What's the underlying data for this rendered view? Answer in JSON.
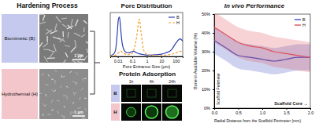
{
  "panels": {
    "hardening": {
      "title": "Hardening Process",
      "labels": [
        "Biomimetic (B)",
        "Hydrothermal (H)"
      ],
      "scale_bars": [
        "1 µm",
        "1 µm"
      ]
    },
    "protein": {
      "title": "Protein Adsorption",
      "columns": [
        "1h",
        "4h",
        "24h"
      ],
      "rows": [
        "B",
        "H"
      ]
    }
  },
  "chart_data": [
    {
      "type": "line",
      "title": "Pore Distribution",
      "x_label": "Pore Entrance Size (µm)",
      "x": [
        0.003,
        0.005,
        0.007,
        0.009,
        0.011,
        0.013,
        0.016,
        0.02,
        0.03,
        0.05,
        0.08,
        0.12,
        0.2,
        0.3,
        0.4,
        0.6,
        1,
        2,
        5,
        10,
        20,
        50,
        100,
        200,
        300
      ],
      "xlim": [
        0.003,
        300
      ],
      "xticks": [
        0.01,
        0.1,
        1,
        10,
        100
      ],
      "ylim": [
        0,
        1
      ],
      "log": "x",
      "tick_labels": "x",
      "legend": "upper right",
      "series": [
        {
          "name": "B",
          "color": "#2d3fb0",
          "line_style": "solid",
          "values": [
            0.02,
            0.05,
            0.15,
            0.5,
            0.85,
            0.9,
            0.6,
            0.3,
            0.12,
            0.08,
            0.1,
            0.12,
            0.08,
            0.06,
            0.05,
            0.04,
            0.03,
            0.03,
            0.04,
            0.05,
            0.08,
            0.15,
            0.3,
            0.4,
            0.35
          ]
        },
        {
          "name": "H",
          "color": "#f0a030",
          "line_style": "dashed",
          "values": [
            0.01,
            0.02,
            0.03,
            0.05,
            0.08,
            0.1,
            0.12,
            0.1,
            0.06,
            0.04,
            0.05,
            0.12,
            0.45,
            0.85,
            0.55,
            0.15,
            0.05,
            0.03,
            0.02,
            0.02,
            0.03,
            0.05,
            0.08,
            0.12,
            0.1
          ]
        }
      ]
    },
    {
      "type": "line",
      "title": "In vivo Performance",
      "x_label": "Radial Distance from the Scaffold Perimeter (mm)",
      "y_label": "Bone in Available Volume (%)",
      "annotations": [
        "Scaffold Perimeter",
        "Scaffold Core →"
      ],
      "x": [
        0,
        0.25,
        0.5,
        0.75,
        1,
        1.25,
        1.5,
        1.75,
        2
      ],
      "xlim": [
        0,
        2
      ],
      "xticks": [
        {
          "value": 0,
          "label": "0.0"
        },
        {
          "value": 0.5,
          "label": "0.5"
        },
        {
          "value": 1,
          "label": "1.0"
        },
        {
          "value": 1.5,
          "label": "1.5"
        },
        {
          "value": 2,
          "label": "2.0"
        }
      ],
      "ylim": [
        0,
        50
      ],
      "yticks": [
        {
          "value": 0,
          "label": "0%"
        },
        {
          "value": 10,
          "label": "10%"
        },
        {
          "value": 20,
          "label": "20%"
        },
        {
          "value": 30,
          "label": "30%"
        },
        {
          "value": 40,
          "label": "40%"
        },
        {
          "value": 50,
          "label": "50%"
        }
      ],
      "legend": "upper right",
      "series": [
        {
          "name": "B",
          "color": "#3b4cc0",
          "line_style": "solid",
          "values": [
            36,
            32,
            28,
            27,
            26,
            25,
            26,
            27,
            27
          ],
          "error": [
            7,
            7,
            7,
            7,
            7,
            7,
            7,
            7,
            7
          ]
        },
        {
          "name": "H",
          "color": "#e0505a",
          "line_style": "solid",
          "values": [
            43,
            39,
            35,
            33,
            32,
            30,
            29,
            28,
            27
          ],
          "error": [
            8,
            8,
            8,
            8,
            8,
            8,
            8,
            8,
            8
          ]
        }
      ]
    }
  ]
}
